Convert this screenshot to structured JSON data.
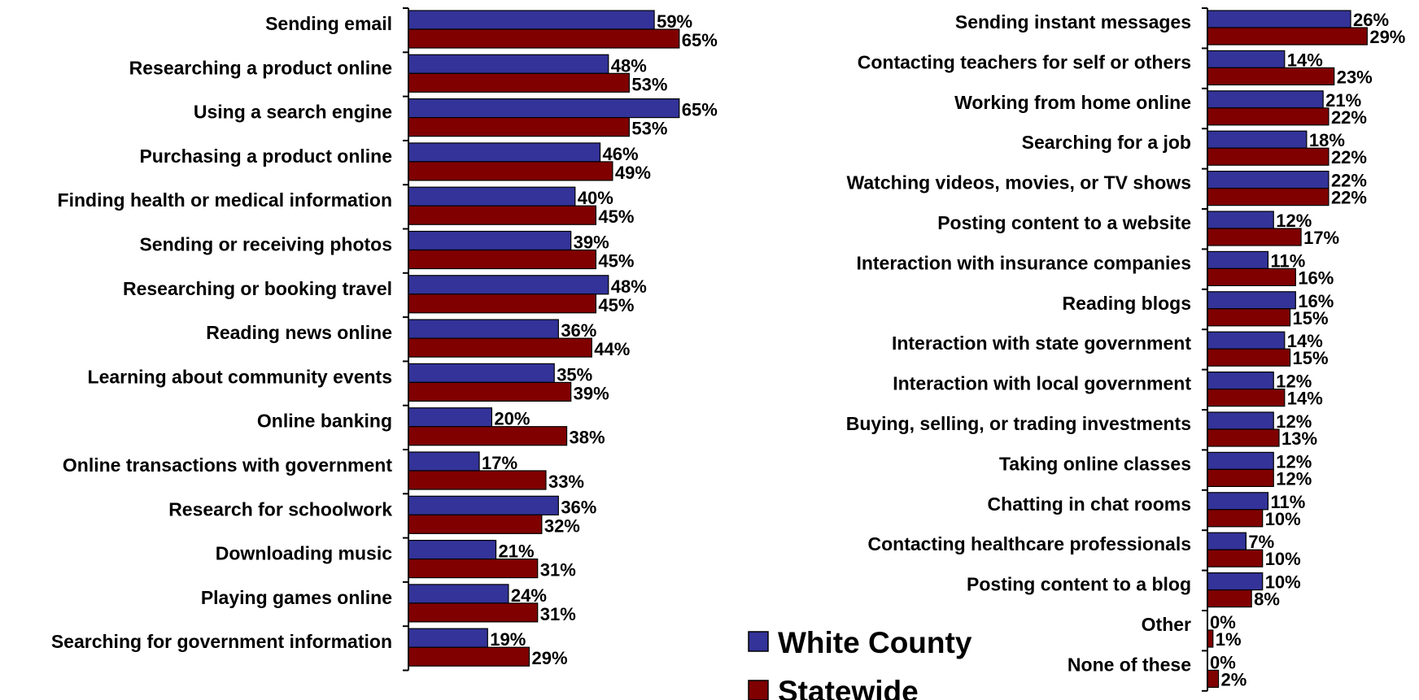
{
  "chart_data": [
    {
      "type": "bar",
      "orientation": "horizontal",
      "categories": [
        "Sending email",
        "Researching a product online",
        "Using a search engine",
        "Purchasing a product online",
        "Finding health or medical information",
        "Sending or receiving photos",
        "Researching or booking travel",
        "Reading news online",
        "Learning about community events",
        "Online banking",
        "Online transactions with government",
        "Research for schoolwork",
        "Downloading music",
        "Playing games online",
        "Searching for government information"
      ],
      "series": [
        {
          "name": "White County",
          "color": "#333399",
          "values": [
            59,
            48,
            65,
            46,
            40,
            39,
            48,
            36,
            35,
            20,
            17,
            36,
            21,
            24,
            19
          ]
        },
        {
          "name": "Statewide",
          "color": "#800000",
          "values": [
            65,
            53,
            53,
            49,
            45,
            45,
            45,
            44,
            39,
            38,
            33,
            32,
            31,
            31,
            29
          ]
        }
      ],
      "value_suffix": "%",
      "xlim": [
        0,
        65
      ]
    },
    {
      "type": "bar",
      "orientation": "horizontal",
      "categories": [
        "Sending instant messages",
        "Contacting teachers for self or others",
        "Working from home online",
        "Searching for a job",
        "Watching videos, movies, or TV shows",
        "Posting content to a website",
        "Interaction with insurance companies",
        "Reading blogs",
        "Interaction with state government",
        "Interaction with local government",
        "Buying, selling, or trading investments",
        "Taking online classes",
        "Chatting in chat rooms",
        "Contacting healthcare professionals",
        "Posting content to a blog",
        "Other",
        "None of these"
      ],
      "series": [
        {
          "name": "White County",
          "color": "#333399",
          "values": [
            26,
            14,
            21,
            18,
            22,
            12,
            11,
            16,
            14,
            12,
            12,
            12,
            11,
            7,
            10,
            0,
            0
          ]
        },
        {
          "name": "Statewide",
          "color": "#800000",
          "values": [
            29,
            23,
            22,
            22,
            22,
            17,
            16,
            15,
            15,
            14,
            13,
            12,
            10,
            10,
            8,
            1,
            2
          ]
        }
      ],
      "value_suffix": "%",
      "xlim": [
        0,
        29
      ]
    }
  ],
  "legend": {
    "placement": "bottom-center",
    "items": [
      {
        "name": "White County",
        "color": "#333399"
      },
      {
        "name": "Statewide",
        "color": "#800000"
      }
    ]
  }
}
